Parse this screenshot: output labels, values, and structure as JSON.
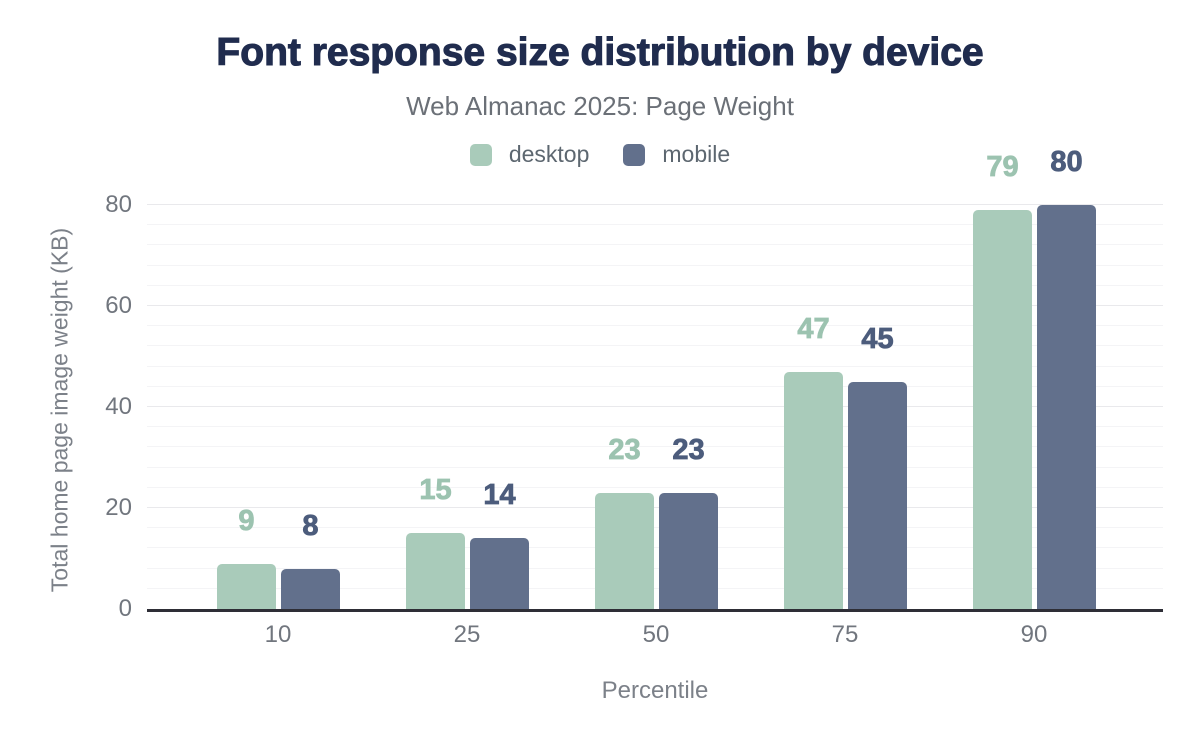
{
  "chart_data": {
    "type": "bar",
    "title": "Font response size distribution by device",
    "subtitle": "Web Almanac 2025: Page Weight",
    "categories": [
      "10",
      "25",
      "50",
      "75",
      "90"
    ],
    "series": [
      {
        "name": "desktop",
        "values": [
          9,
          15,
          23,
          47,
          79
        ],
        "color": "#a9cbba",
        "label_color": "#9cc3b0"
      },
      {
        "name": "mobile",
        "values": [
          8,
          14,
          23,
          45,
          80
        ],
        "color": "#62708c",
        "label_color": "#4c5c7c"
      }
    ],
    "xlabel": "Percentile",
    "ylabel": "Total home page image weight (KB)",
    "ylim": [
      0,
      80
    ],
    "yticks": [
      0,
      20,
      40,
      60,
      80
    ],
    "y_minor_step": 4,
    "grid": true,
    "legend_position": "top",
    "data_labels": true
  },
  "styles": {
    "title_color": "#202c4e",
    "subtitle_color": "#6b7077",
    "legend_text_color": "#5d6770",
    "tick_label_color": "#71767e",
    "axis_title_color": "#7c8189",
    "axis_line_color": "#2e2e36",
    "grid_major_color": "#e9e9ec",
    "grid_minor_color": "#f4f4f6",
    "background": "#ffffff"
  }
}
